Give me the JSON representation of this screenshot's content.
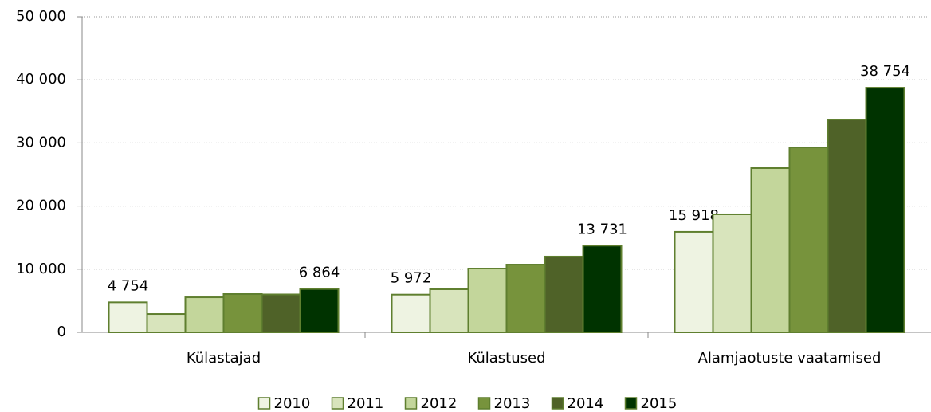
{
  "chart_data": {
    "type": "bar",
    "categories": [
      "Külastajad",
      "Külastused",
      "Alamjaotuste vaatamised"
    ],
    "series": [
      {
        "name": "2010",
        "color": "#eef3e2",
        "values": [
          4754,
          5972,
          15918
        ],
        "value_labels": [
          "4 754",
          "5 972",
          "15 918"
        ]
      },
      {
        "name": "2011",
        "color": "#d8e4bc",
        "values": [
          2900,
          6820,
          18690
        ],
        "value_labels": [
          null,
          null,
          null
        ]
      },
      {
        "name": "2012",
        "color": "#c3d69b",
        "values": [
          5550,
          10100,
          26010
        ],
        "value_labels": [
          null,
          null,
          null
        ]
      },
      {
        "name": "2013",
        "color": "#77933c",
        "values": [
          6060,
          10730,
          29290
        ],
        "value_labels": [
          null,
          null,
          null
        ]
      },
      {
        "name": "2014",
        "color": "#4f6228",
        "values": [
          6000,
          12000,
          33710
        ],
        "value_labels": [
          null,
          null,
          null
        ]
      },
      {
        "name": "2015",
        "color": "#003300",
        "values": [
          6864,
          13731,
          38754
        ],
        "value_labels": [
          "6 864",
          "13 731",
          "38 754"
        ]
      }
    ],
    "ylim": [
      0,
      50000
    ],
    "yticks": [
      0,
      {
        "value": 10000,
        "label": "10 000"
      },
      {
        "value": 20000,
        "label": "20 000"
      },
      {
        "value": 30000,
        "label": "30 000"
      },
      {
        "value": 40000,
        "label": "40 000"
      },
      {
        "value": 50000,
        "label": "50 000"
      }
    ],
    "grid": true,
    "legend": "bottom"
  }
}
